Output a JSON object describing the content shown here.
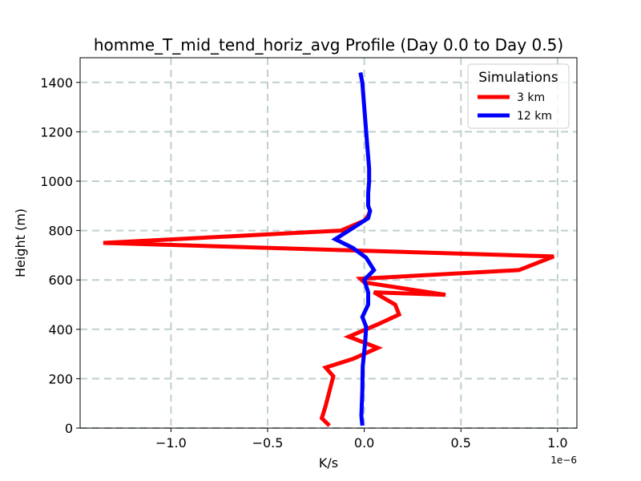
{
  "chart_data": {
    "type": "line",
    "title": "homme_T_mid_tend_horiz_avg Profile (Day 0.0 to Day 0.5)",
    "xlabel": "K/s",
    "ylabel": "Height (m)",
    "x_offset_label": "1e−6",
    "xlim": [
      -1.47,
      1.1
    ],
    "ylim": [
      0,
      1500
    ],
    "xticks": [
      -1.0,
      -0.5,
      0.0,
      0.5,
      1.0
    ],
    "xtick_labels": [
      "−1.0",
      "−0.5",
      "0.0",
      "0.5",
      "1.0"
    ],
    "yticks": [
      0,
      200,
      400,
      600,
      800,
      1000,
      1200,
      1400
    ],
    "ytick_labels": [
      "0",
      "200",
      "400",
      "600",
      "800",
      "1000",
      "1200",
      "1400"
    ],
    "grid": true,
    "legend": {
      "title": "Simulations",
      "position": "top-right"
    },
    "series": [
      {
        "name": "3 km",
        "color": "#ff0000",
        "points": [
          [
            -0.18,
            10
          ],
          [
            -0.22,
            40
          ],
          [
            -0.2,
            90
          ],
          [
            -0.18,
            150
          ],
          [
            -0.16,
            210
          ],
          [
            -0.2,
            245
          ],
          [
            -0.06,
            280
          ],
          [
            0.07,
            325
          ],
          [
            -0.08,
            370
          ],
          [
            0.07,
            420
          ],
          [
            0.18,
            460
          ],
          [
            0.16,
            500
          ],
          [
            0.05,
            550
          ],
          [
            0.42,
            540
          ],
          [
            0.0,
            590
          ],
          [
            -0.02,
            605
          ],
          [
            0.8,
            640
          ],
          [
            0.98,
            695
          ],
          [
            -1.35,
            750
          ],
          [
            -0.12,
            800
          ],
          [
            0.0,
            840
          ],
          [
            0.02,
            860
          ],
          [
            0.03,
            880
          ]
        ]
      },
      {
        "name": "12 km",
        "color": "#0000ff",
        "points": [
          [
            -0.01,
            10
          ],
          [
            -0.015,
            50
          ],
          [
            -0.01,
            150
          ],
          [
            -0.008,
            250
          ],
          [
            0.005,
            350
          ],
          [
            0.01,
            410
          ],
          [
            -0.01,
            450
          ],
          [
            0.02,
            500
          ],
          [
            0.02,
            550
          ],
          [
            0.0,
            600
          ],
          [
            0.05,
            640
          ],
          [
            0.01,
            690
          ],
          [
            -0.06,
            730
          ],
          [
            -0.15,
            765
          ],
          [
            -0.08,
            800
          ],
          [
            0.02,
            850
          ],
          [
            0.03,
            880
          ],
          [
            0.02,
            900
          ],
          [
            0.02,
            950
          ],
          [
            0.025,
            1000
          ],
          [
            0.025,
            1050
          ],
          [
            0.02,
            1100
          ],
          [
            0.015,
            1150
          ],
          [
            0.01,
            1200
          ],
          [
            0.0,
            1300
          ],
          [
            -0.01,
            1400
          ],
          [
            -0.02,
            1440
          ]
        ]
      }
    ]
  }
}
